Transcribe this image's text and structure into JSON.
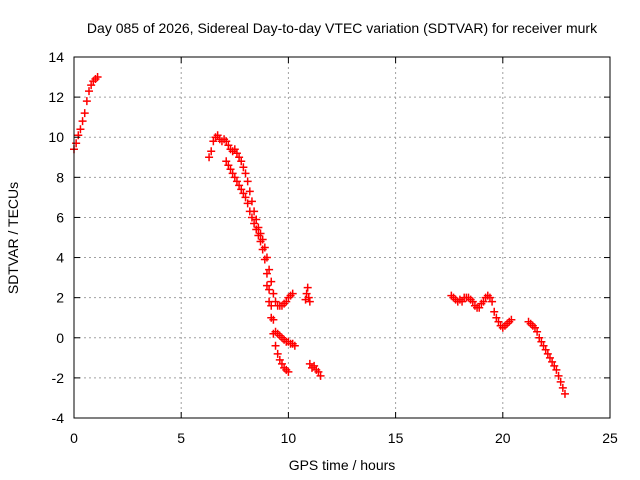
{
  "chart_data": {
    "type": "scatter",
    "title": "Day 085 of 2026, Sidereal Day-to-day VTEC variation (SDTVAR) for receiver murk",
    "xlabel": "GPS time / hours",
    "ylabel": "SDTVAR / TECUs",
    "xlim": [
      0,
      25
    ],
    "ylim": [
      -4,
      14
    ],
    "xticks": [
      0,
      5,
      10,
      15,
      20,
      25
    ],
    "yticks": [
      -4,
      -2,
      0,
      2,
      4,
      6,
      8,
      10,
      12,
      14
    ],
    "grid": true,
    "legend": "none",
    "marker": "plus",
    "marker_color": "#ff0000",
    "series": [
      {
        "name": "segment-1",
        "points": [
          [
            0.0,
            9.4
          ],
          [
            0.1,
            9.7
          ],
          [
            0.2,
            10.1
          ],
          [
            0.3,
            10.4
          ],
          [
            0.4,
            10.8
          ],
          [
            0.5,
            11.2
          ],
          [
            0.6,
            11.8
          ],
          [
            0.7,
            12.3
          ],
          [
            0.8,
            12.6
          ],
          [
            0.9,
            12.8
          ],
          [
            1.0,
            12.9
          ],
          [
            1.1,
            13.0
          ]
        ]
      },
      {
        "name": "segment-2a",
        "points": [
          [
            6.3,
            9.0
          ],
          [
            6.4,
            9.3
          ],
          [
            6.5,
            9.8
          ],
          [
            6.6,
            10.0
          ],
          [
            6.7,
            10.1
          ],
          [
            6.8,
            9.9
          ],
          [
            6.9,
            9.8
          ],
          [
            7.0,
            9.9
          ],
          [
            7.1,
            9.8
          ],
          [
            7.2,
            9.6
          ],
          [
            7.3,
            9.4
          ],
          [
            7.4,
            9.3
          ],
          [
            7.5,
            9.4
          ],
          [
            7.6,
            9.2
          ],
          [
            7.7,
            9.0
          ],
          [
            7.8,
            8.8
          ],
          [
            7.9,
            8.5
          ],
          [
            8.0,
            8.2
          ],
          [
            8.1,
            7.8
          ],
          [
            8.2,
            7.3
          ],
          [
            8.3,
            6.8
          ],
          [
            8.4,
            6.3
          ],
          [
            8.5,
            5.9
          ],
          [
            8.6,
            5.5
          ],
          [
            8.7,
            5.2
          ],
          [
            8.8,
            4.9
          ],
          [
            8.9,
            4.5
          ],
          [
            9.0,
            4.0
          ],
          [
            9.1,
            3.4
          ],
          [
            9.2,
            2.8
          ],
          [
            9.3,
            2.2
          ],
          [
            9.4,
            1.8
          ],
          [
            9.5,
            1.6
          ],
          [
            9.6,
            1.6
          ],
          [
            9.7,
            1.6
          ],
          [
            9.8,
            1.7
          ],
          [
            9.9,
            1.8
          ],
          [
            10.0,
            2.0
          ],
          [
            10.1,
            2.1
          ],
          [
            10.2,
            2.2
          ]
        ]
      },
      {
        "name": "segment-2b",
        "points": [
          [
            7.1,
            8.8
          ],
          [
            7.2,
            8.6
          ],
          [
            7.3,
            8.4
          ],
          [
            7.4,
            8.2
          ],
          [
            7.5,
            8.0
          ],
          [
            7.6,
            7.8
          ],
          [
            7.7,
            7.6
          ],
          [
            7.8,
            7.4
          ],
          [
            7.9,
            7.2
          ],
          [
            8.0,
            7.0
          ],
          [
            8.1,
            6.7
          ],
          [
            8.2,
            6.3
          ],
          [
            8.3,
            6.0
          ],
          [
            8.4,
            5.7
          ],
          [
            8.5,
            5.4
          ],
          [
            8.6,
            5.1
          ],
          [
            8.7,
            4.8
          ],
          [
            8.8,
            4.4
          ],
          [
            8.9,
            3.9
          ],
          [
            9.0,
            3.2
          ],
          [
            9.1,
            2.4
          ],
          [
            9.2,
            1.6
          ],
          [
            9.3,
            0.9
          ],
          [
            9.4,
            0.3
          ],
          [
            9.5,
            0.2
          ],
          [
            9.6,
            0.1
          ],
          [
            9.7,
            0.0
          ],
          [
            9.8,
            -0.1
          ],
          [
            9.9,
            -0.2
          ],
          [
            10.0,
            -0.2
          ],
          [
            10.1,
            -0.3
          ],
          [
            10.2,
            -0.3
          ],
          [
            10.3,
            -0.4
          ]
        ]
      },
      {
        "name": "segment-2c",
        "points": [
          [
            9.0,
            2.6
          ],
          [
            9.1,
            1.8
          ],
          [
            9.2,
            1.0
          ],
          [
            9.3,
            0.2
          ],
          [
            9.4,
            -0.4
          ],
          [
            9.5,
            -0.8
          ],
          [
            9.6,
            -1.1
          ],
          [
            9.7,
            -1.3
          ],
          [
            9.8,
            -1.5
          ],
          [
            9.9,
            -1.6
          ],
          [
            10.0,
            -1.7
          ]
        ]
      },
      {
        "name": "segment-3",
        "points": [
          [
            10.8,
            1.9
          ],
          [
            10.85,
            2.2
          ],
          [
            10.9,
            2.5
          ],
          [
            10.95,
            2.0
          ],
          [
            11.0,
            1.8
          ],
          [
            11.0,
            -1.3
          ],
          [
            11.1,
            -1.5
          ],
          [
            11.2,
            -1.4
          ],
          [
            11.3,
            -1.6
          ],
          [
            11.4,
            -1.7
          ],
          [
            11.5,
            -1.9
          ]
        ]
      },
      {
        "name": "segment-4",
        "points": [
          [
            17.6,
            2.1
          ],
          [
            17.7,
            2.0
          ],
          [
            17.8,
            1.9
          ],
          [
            17.9,
            1.8
          ],
          [
            18.0,
            1.9
          ],
          [
            18.1,
            1.8
          ],
          [
            18.2,
            2.0
          ],
          [
            18.3,
            2.0
          ],
          [
            18.4,
            2.0
          ],
          [
            18.5,
            1.9
          ],
          [
            18.6,
            1.8
          ],
          [
            18.7,
            1.6
          ],
          [
            18.8,
            1.5
          ],
          [
            18.9,
            1.5
          ],
          [
            19.0,
            1.7
          ],
          [
            19.1,
            1.8
          ],
          [
            19.2,
            2.0
          ],
          [
            19.3,
            2.1
          ],
          [
            19.4,
            2.0
          ],
          [
            19.5,
            1.8
          ],
          [
            19.6,
            1.3
          ],
          [
            19.7,
            1.0
          ],
          [
            19.8,
            0.8
          ],
          [
            19.9,
            0.6
          ],
          [
            20.0,
            0.5
          ],
          [
            20.1,
            0.6
          ],
          [
            20.2,
            0.7
          ],
          [
            20.3,
            0.8
          ],
          [
            20.4,
            0.9
          ]
        ]
      },
      {
        "name": "segment-5",
        "points": [
          [
            21.2,
            0.8
          ],
          [
            21.3,
            0.7
          ],
          [
            21.4,
            0.6
          ],
          [
            21.5,
            0.5
          ],
          [
            21.6,
            0.3
          ],
          [
            21.7,
            0.0
          ],
          [
            21.8,
            -0.2
          ],
          [
            21.9,
            -0.4
          ],
          [
            22.0,
            -0.6
          ],
          [
            22.1,
            -0.8
          ],
          [
            22.2,
            -1.0
          ],
          [
            22.3,
            -1.2
          ],
          [
            22.4,
            -1.4
          ],
          [
            22.5,
            -1.6
          ],
          [
            22.6,
            -1.9
          ],
          [
            22.7,
            -2.2
          ],
          [
            22.8,
            -2.5
          ],
          [
            22.9,
            -2.8
          ]
        ]
      }
    ]
  }
}
